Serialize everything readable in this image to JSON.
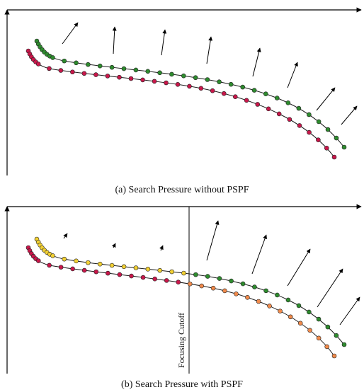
{
  "colors": {
    "axis": "#000000",
    "curve": "#1a1a1a",
    "green": "#2e8b2e",
    "red": "#c8174a",
    "yellow": "#f2d033",
    "orange": "#f08a4b",
    "arrow": "#000000"
  },
  "panels": [
    {
      "id": "a",
      "caption": "(a) Search Pressure without PSPF",
      "cutoff_label": "",
      "arrow_sizes": [
        "medium",
        "long",
        "long",
        "long",
        "long",
        "long",
        "long",
        "long"
      ]
    },
    {
      "id": "b",
      "caption": "(b) Search Pressure with PSPF",
      "cutoff_label": "Focusing Cutoff",
      "arrow_sizes": [
        "tiny",
        "tiny",
        "tiny",
        "long",
        "long",
        "long",
        "long",
        "long"
      ]
    }
  ]
}
